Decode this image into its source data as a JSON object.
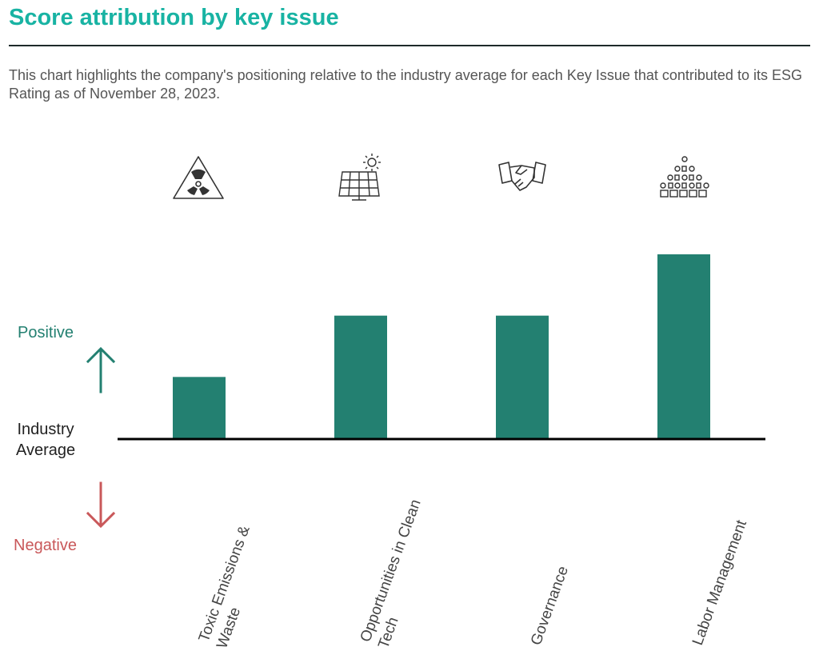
{
  "header": {
    "title": "Score attribution by key issue",
    "subtitle": "This chart highlights the company's positioning relative to the industry average for each Key Issue that contributed to its ESG Rating as of November 28, 2023."
  },
  "legend": {
    "positive": "Positive",
    "average_line1": "Industry",
    "average_line2": "Average",
    "negative": "Negative"
  },
  "colors": {
    "title": "#18b3a3",
    "bar": "#238071",
    "positive": "#238071",
    "negative": "#c9585a",
    "baseline": "#000000"
  },
  "chart_data": {
    "type": "bar",
    "categories": [
      "Toxic Emissions & Waste",
      "Opportunities in Clean Tech",
      "Governance",
      "Labor Management"
    ],
    "category_label_lines": [
      [
        "Toxic Emissions &",
        "Waste"
      ],
      [
        "Opportunities in Clean",
        "Tech"
      ],
      [
        "Governance"
      ],
      [
        "Labor Management"
      ]
    ],
    "icons": [
      "radiation-warning-icon",
      "solar-panel-icon",
      "handshake-icon",
      "workforce-hierarchy-icon"
    ],
    "values": [
      1,
      2,
      2,
      3
    ],
    "value_note": "relative contribution vs. industry average (no numeric scale shown)",
    "ylim": [
      0,
      3
    ],
    "baseline": 0
  }
}
